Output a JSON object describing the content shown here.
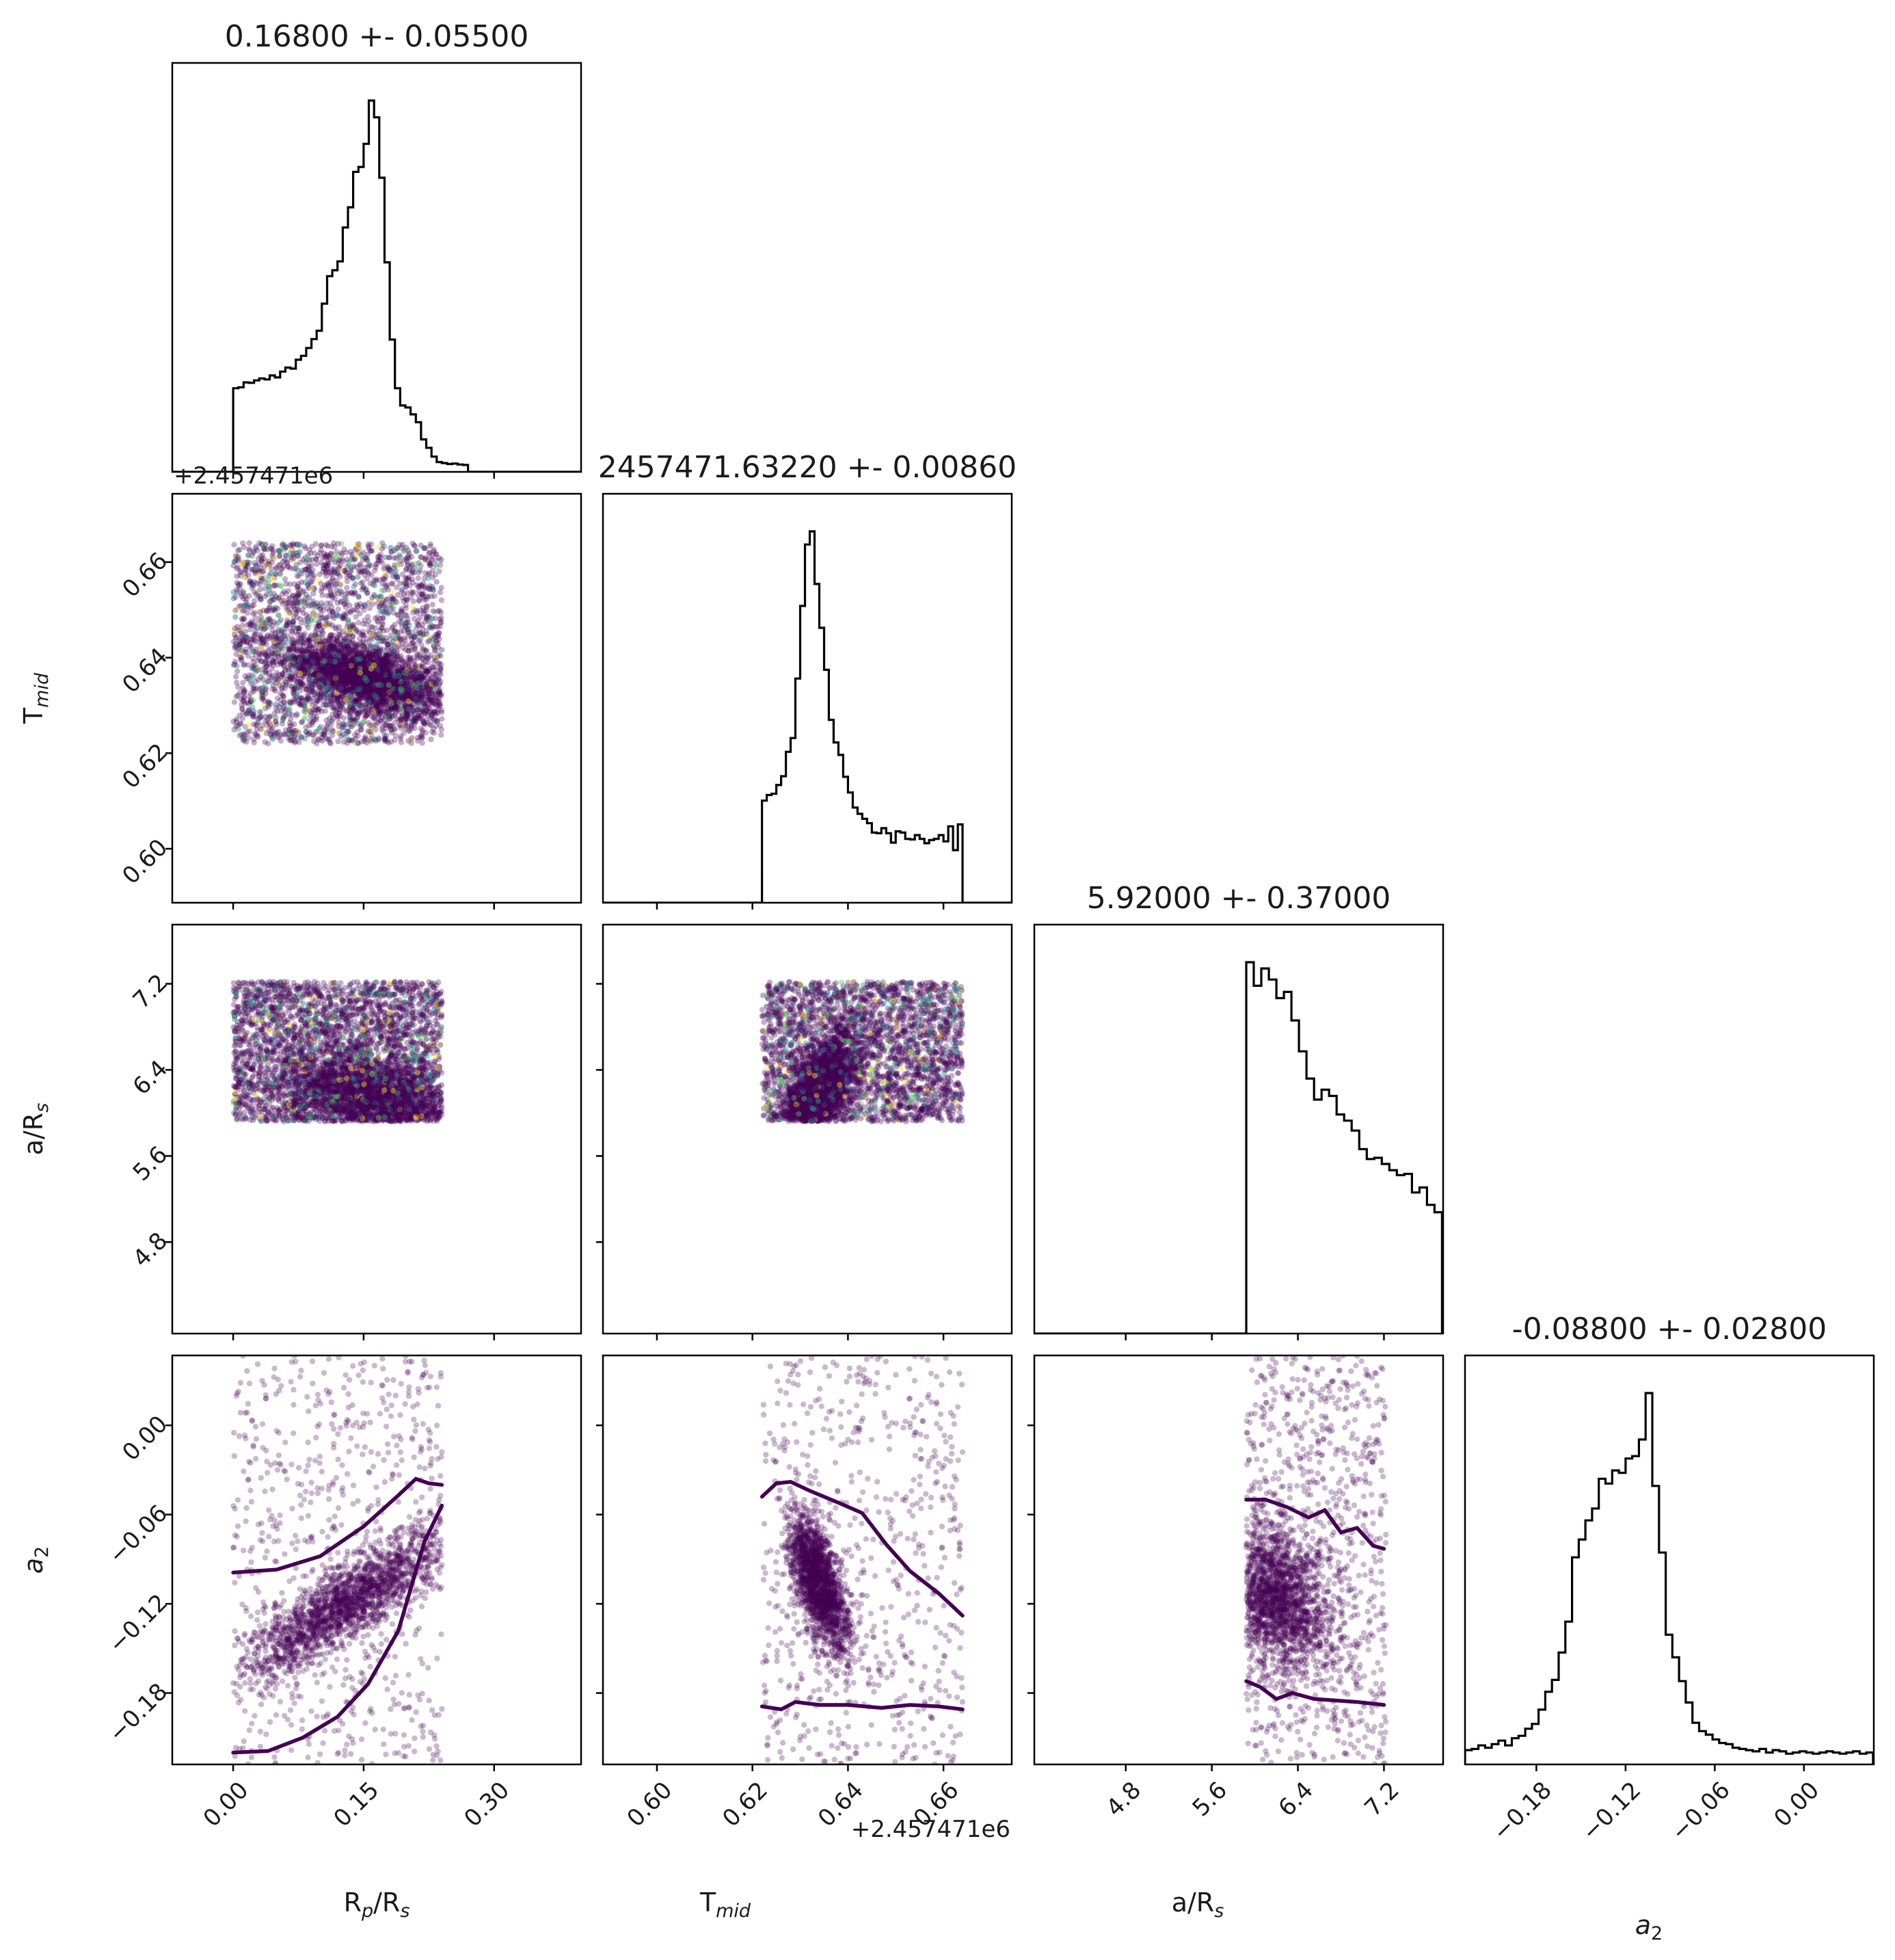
{
  "chart_data": {
    "type": "scatter",
    "kind": "corner plot",
    "parameters": [
      {
        "label": "R",
        "sub": "p",
        "label2": "/R",
        "sub2": "s",
        "range": [
          -0.07,
          0.4
        ],
        "ticks": [
          0.0,
          0.15,
          0.3
        ],
        "tick_labels": [
          "0.00",
          "0.15",
          "0.30"
        ],
        "title": "0.16800 +- 0.05500"
      },
      {
        "label": "T",
        "sub": "mid",
        "label2": "",
        "sub2": "",
        "range": [
          0.5887,
          0.6743
        ],
        "ticks": [
          0.6,
          0.62,
          0.64,
          0.66
        ],
        "tick_labels": [
          "0.60",
          "0.62",
          "0.64",
          "0.66"
        ],
        "offset": "+2.457471e6",
        "title": "2457471.63220 +- 0.00860"
      },
      {
        "label": "a/R",
        "sub": "s",
        "label2": "",
        "sub2": "",
        "range": [
          3.95,
          7.75
        ],
        "ticks": [
          4.8,
          5.6,
          6.4,
          7.2
        ],
        "tick_labels": [
          "4.8",
          "5.6",
          "6.4",
          "7.2"
        ],
        "title": "5.92000 +- 0.37000"
      },
      {
        "label": "a",
        "sub": "2",
        "label2": "",
        "sub2": "",
        "italic": true,
        "range": [
          -0.228,
          0.047
        ],
        "ticks": [
          -0.18,
          -0.12,
          -0.06,
          0.0
        ],
        "tick_labels": [
          "−0.18",
          "−0.12",
          "−0.06",
          "0.00"
        ],
        "title": "-0.08800 +- 0.02800"
      }
    ],
    "grid": false,
    "histograms": [
      {
        "param": 0,
        "bin_start": 0.0,
        "bin_width": 0.006,
        "counts": [
          0.17,
          0.172,
          0.182,
          0.181,
          0.186,
          0.19,
          0.188,
          0.196,
          0.192,
          0.204,
          0.212,
          0.21,
          0.228,
          0.236,
          0.252,
          0.27,
          0.287,
          0.342,
          0.398,
          0.41,
          0.428,
          0.497,
          0.538,
          0.61,
          0.62,
          0.667,
          0.755,
          0.721,
          0.598,
          0.426,
          0.269,
          0.17,
          0.135,
          0.131,
          0.117,
          0.101,
          0.066,
          0.049,
          0.031,
          0.02,
          0.018,
          0.016,
          0.017,
          0.015,
          0.014
        ]
      },
      {
        "param": 1,
        "bin_start": 0.622,
        "bin_width": 0.001,
        "counts": [
          0.163,
          0.172,
          0.174,
          0.188,
          0.202,
          0.241,
          0.263,
          0.358,
          0.474,
          0.572,
          0.593,
          0.509,
          0.439,
          0.372,
          0.292,
          0.256,
          0.236,
          0.201,
          0.176,
          0.152,
          0.142,
          0.134,
          0.127,
          0.112,
          0.111,
          0.119,
          0.111,
          0.096,
          0.114,
          0.112,
          0.102,
          0.101,
          0.108,
          0.102,
          0.095,
          0.1,
          0.102,
          0.108,
          0.098,
          0.122,
          0.084,
          0.125
        ]
      },
      {
        "param": 2,
        "bin_start": 5.92,
        "bin_width": 0.07,
        "counts": [
          0.3,
          0.281,
          0.295,
          0.286,
          0.271,
          0.276,
          0.253,
          0.228,
          0.206,
          0.189,
          0.197,
          0.192,
          0.177,
          0.172,
          0.164,
          0.149,
          0.141,
          0.142,
          0.137,
          0.132,
          0.128,
          0.129,
          0.114,
          0.118,
          0.104,
          0.098
        ]
      },
      {
        "param": 3,
        "bin_start": -0.228,
        "bin_width": 0.0045,
        "counts": [
          0.012,
          0.013,
          0.016,
          0.014,
          0.017,
          0.02,
          0.016,
          0.022,
          0.024,
          0.03,
          0.034,
          0.046,
          0.061,
          0.071,
          0.094,
          0.12,
          0.174,
          0.189,
          0.205,
          0.215,
          0.24,
          0.236,
          0.247,
          0.245,
          0.257,
          0.259,
          0.273,
          0.312,
          0.234,
          0.178,
          0.109,
          0.09,
          0.07,
          0.052,
          0.035,
          0.028,
          0.025,
          0.021,
          0.018,
          0.017,
          0.014,
          0.013,
          0.012,
          0.011,
          0.013,
          0.01,
          0.012,
          0.011,
          0.009,
          0.01,
          0.011,
          0.01,
          0.009,
          0.01,
          0.011,
          0.01,
          0.009,
          0.01,
          0.011,
          0.009,
          0.01
        ]
      }
    ],
    "scatter_panels": [
      {
        "x": 0,
        "y": 1,
        "n": 5000,
        "uniform_x": [
          0.0,
          0.24
        ],
        "uniform_y": [
          0.622,
          0.664
        ],
        "cluster": {
          "center": [
            0.15,
            0.636
          ],
          "sd": [
            0.045,
            0.004
          ],
          "corr": -0.5,
          "frac": 0.5
        }
      },
      {
        "x": 0,
        "y": 2,
        "n": 5000,
        "uniform_x": [
          0.0,
          0.24
        ],
        "uniform_y": [
          5.92,
          7.22
        ],
        "cluster": {
          "center": [
            0.16,
            6.15
          ],
          "sd": [
            0.05,
            0.2
          ],
          "corr": -0.3,
          "frac": 0.45
        }
      },
      {
        "x": 1,
        "y": 2,
        "n": 5000,
        "uniform_x": [
          0.622,
          0.664
        ],
        "uniform_y": [
          5.92,
          7.22
        ],
        "cluster": {
          "center": [
            0.634,
            6.2
          ],
          "sd": [
            0.004,
            0.25
          ],
          "corr": 0.6,
          "frac": 0.5
        }
      },
      {
        "x": 0,
        "y": 3,
        "n": 2500,
        "uniform_x": [
          0.0,
          0.24
        ],
        "uniform_y": [
          -0.228,
          0.047
        ],
        "cluster": {
          "center": [
            0.13,
            -0.12
          ],
          "sd": [
            0.06,
            0.025
          ],
          "corr": 0.85,
          "frac": 0.75
        }
      },
      {
        "x": 1,
        "y": 3,
        "n": 2500,
        "uniform_x": [
          0.622,
          0.664
        ],
        "uniform_y": [
          -0.228,
          0.047
        ],
        "cluster": {
          "center": [
            0.634,
            -0.107
          ],
          "sd": [
            0.003,
            0.023
          ],
          "corr": -0.6,
          "frac": 0.75
        }
      },
      {
        "x": 2,
        "y": 3,
        "n": 2500,
        "uniform_x": [
          5.92,
          7.22
        ],
        "uniform_y": [
          -0.228,
          0.047
        ],
        "cluster": {
          "center": [
            6.2,
            -0.115
          ],
          "sd": [
            0.25,
            0.025
          ],
          "corr": -0.3,
          "frac": 0.75
        }
      }
    ],
    "contours": [
      {
        "x": 0,
        "y": 3,
        "points": [
          [
            0.0,
            -0.099
          ],
          [
            0.05,
            -0.097
          ],
          [
            0.1,
            -0.088
          ],
          [
            0.15,
            -0.068
          ],
          [
            0.19,
            -0.047
          ],
          [
            0.21,
            -0.036
          ],
          [
            0.225,
            -0.039
          ],
          [
            0.24,
            -0.04
          ]
        ]
      },
      {
        "x": 0,
        "y": 3,
        "points": [
          [
            0.0,
            -0.22
          ],
          [
            0.04,
            -0.219
          ],
          [
            0.08,
            -0.21
          ],
          [
            0.12,
            -0.196
          ],
          [
            0.155,
            -0.174
          ],
          [
            0.19,
            -0.138
          ],
          [
            0.22,
            -0.078
          ],
          [
            0.24,
            -0.054
          ]
        ]
      },
      {
        "x": 1,
        "y": 3,
        "points": [
          [
            0.622,
            -0.048
          ],
          [
            0.625,
            -0.039
          ],
          [
            0.628,
            -0.038
          ],
          [
            0.632,
            -0.044
          ],
          [
            0.638,
            -0.052
          ],
          [
            0.643,
            -0.059
          ],
          [
            0.648,
            -0.08
          ],
          [
            0.653,
            -0.098
          ],
          [
            0.659,
            -0.113
          ],
          [
            0.664,
            -0.128
          ]
        ]
      },
      {
        "x": 1,
        "y": 3,
        "points": [
          [
            0.622,
            -0.189
          ],
          [
            0.626,
            -0.191
          ],
          [
            0.629,
            -0.186
          ],
          [
            0.634,
            -0.188
          ],
          [
            0.64,
            -0.188
          ],
          [
            0.647,
            -0.19
          ],
          [
            0.653,
            -0.188
          ],
          [
            0.659,
            -0.189
          ],
          [
            0.664,
            -0.191
          ]
        ]
      },
      {
        "x": 2,
        "y": 3,
        "points": [
          [
            5.92,
            -0.05
          ],
          [
            6.1,
            -0.05
          ],
          [
            6.3,
            -0.055
          ],
          [
            6.5,
            -0.062
          ],
          [
            6.65,
            -0.057
          ],
          [
            6.8,
            -0.072
          ],
          [
            6.95,
            -0.069
          ],
          [
            7.1,
            -0.081
          ],
          [
            7.2,
            -0.083
          ]
        ]
      },
      {
        "x": 2,
        "y": 3,
        "points": [
          [
            5.92,
            -0.172
          ],
          [
            6.05,
            -0.176
          ],
          [
            6.2,
            -0.184
          ],
          [
            6.35,
            -0.18
          ],
          [
            6.55,
            -0.184
          ],
          [
            6.75,
            -0.185
          ],
          [
            6.95,
            -0.186
          ],
          [
            7.2,
            -0.188
          ]
        ]
      }
    ]
  },
  "offsets": {
    "x1": "+2.457471e6",
    "y1": "+2.457471e6"
  }
}
